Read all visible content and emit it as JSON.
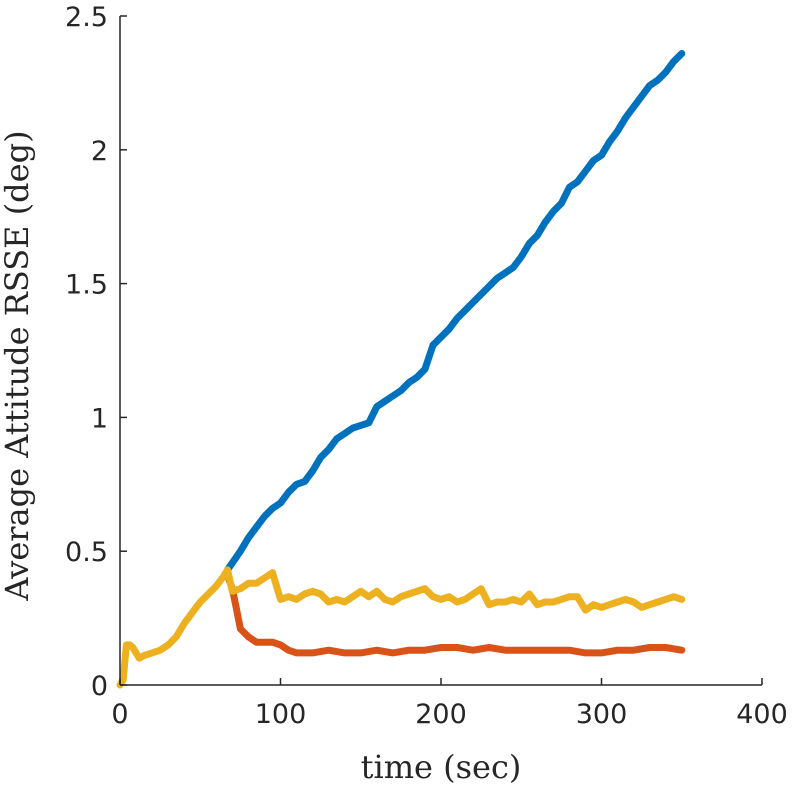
{
  "chart_data": {
    "type": "line",
    "title": "",
    "xlabel": "time (sec)",
    "ylabel": "Average Attitude RSSE (deg)",
    "xlim": [
      0,
      400
    ],
    "ylim": [
      0,
      2.5
    ],
    "xticks": [
      0,
      100,
      200,
      300,
      400
    ],
    "yticks": [
      0,
      0.5,
      1,
      1.5,
      2,
      2.5
    ],
    "xtick_labels": [
      "0",
      "100",
      "200",
      "300",
      "400"
    ],
    "ytick_labels": [
      "0",
      "0.5",
      "1",
      "1.5",
      "2",
      "2.5"
    ],
    "grid": false,
    "legend": "none",
    "series": [
      {
        "color": "#0072BD",
        "x": [
          67,
          75,
          80,
          85,
          90,
          95,
          100,
          105,
          110,
          115,
          120,
          125,
          130,
          135,
          140,
          145,
          150,
          155,
          160,
          165,
          170,
          175,
          180,
          185,
          190,
          195,
          200,
          205,
          210,
          215,
          220,
          225,
          230,
          235,
          240,
          245,
          250,
          255,
          260,
          265,
          270,
          275,
          280,
          285,
          290,
          295,
          300,
          305,
          310,
          315,
          320,
          325,
          330,
          335,
          340,
          345,
          350
        ],
        "y": [
          0.43,
          0.5,
          0.55,
          0.59,
          0.63,
          0.66,
          0.68,
          0.72,
          0.75,
          0.76,
          0.8,
          0.85,
          0.88,
          0.92,
          0.94,
          0.96,
          0.97,
          0.98,
          1.04,
          1.06,
          1.08,
          1.1,
          1.13,
          1.15,
          1.18,
          1.27,
          1.3,
          1.33,
          1.37,
          1.4,
          1.43,
          1.46,
          1.49,
          1.52,
          1.54,
          1.56,
          1.6,
          1.65,
          1.68,
          1.73,
          1.77,
          1.8,
          1.86,
          1.88,
          1.92,
          1.96,
          1.98,
          2.03,
          2.07,
          2.12,
          2.16,
          2.2,
          2.24,
          2.26,
          2.29,
          2.33,
          2.36
        ]
      },
      {
        "color": "#D95319",
        "x": [
          67,
          70,
          72,
          75,
          80,
          85,
          90,
          95,
          100,
          105,
          110,
          120,
          130,
          140,
          150,
          160,
          170,
          180,
          190,
          200,
          210,
          220,
          230,
          240,
          250,
          260,
          270,
          280,
          290,
          300,
          310,
          320,
          330,
          340,
          350
        ],
        "y": [
          0.41,
          0.36,
          0.3,
          0.21,
          0.18,
          0.16,
          0.16,
          0.16,
          0.15,
          0.13,
          0.12,
          0.12,
          0.13,
          0.12,
          0.12,
          0.13,
          0.12,
          0.13,
          0.13,
          0.14,
          0.14,
          0.13,
          0.14,
          0.13,
          0.13,
          0.13,
          0.13,
          0.13,
          0.12,
          0.12,
          0.13,
          0.13,
          0.14,
          0.14,
          0.13
        ]
      },
      {
        "color": "#EDB120",
        "x": [
          0,
          2,
          4,
          6,
          8,
          10,
          12,
          15,
          20,
          25,
          30,
          35,
          40,
          45,
          50,
          55,
          60,
          65,
          67,
          70,
          75,
          80,
          85,
          90,
          95,
          100,
          105,
          110,
          115,
          120,
          125,
          130,
          135,
          140,
          145,
          150,
          155,
          160,
          165,
          170,
          175,
          180,
          185,
          190,
          195,
          200,
          205,
          210,
          215,
          220,
          225,
          230,
          235,
          240,
          245,
          250,
          255,
          260,
          265,
          270,
          275,
          280,
          285,
          290,
          295,
          300,
          305,
          310,
          315,
          320,
          325,
          330,
          335,
          340,
          345,
          350
        ],
        "y": [
          0.0,
          0.02,
          0.15,
          0.15,
          0.14,
          0.12,
          0.1,
          0.11,
          0.12,
          0.13,
          0.15,
          0.18,
          0.23,
          0.27,
          0.31,
          0.34,
          0.37,
          0.41,
          0.43,
          0.35,
          0.36,
          0.38,
          0.38,
          0.4,
          0.42,
          0.32,
          0.33,
          0.32,
          0.34,
          0.35,
          0.34,
          0.31,
          0.32,
          0.31,
          0.33,
          0.35,
          0.33,
          0.35,
          0.32,
          0.31,
          0.33,
          0.34,
          0.35,
          0.36,
          0.33,
          0.32,
          0.33,
          0.31,
          0.32,
          0.34,
          0.36,
          0.3,
          0.31,
          0.31,
          0.32,
          0.31,
          0.34,
          0.3,
          0.31,
          0.31,
          0.32,
          0.33,
          0.33,
          0.28,
          0.3,
          0.29,
          0.3,
          0.31,
          0.32,
          0.31,
          0.29,
          0.3,
          0.31,
          0.32,
          0.33,
          0.32
        ]
      }
    ]
  }
}
